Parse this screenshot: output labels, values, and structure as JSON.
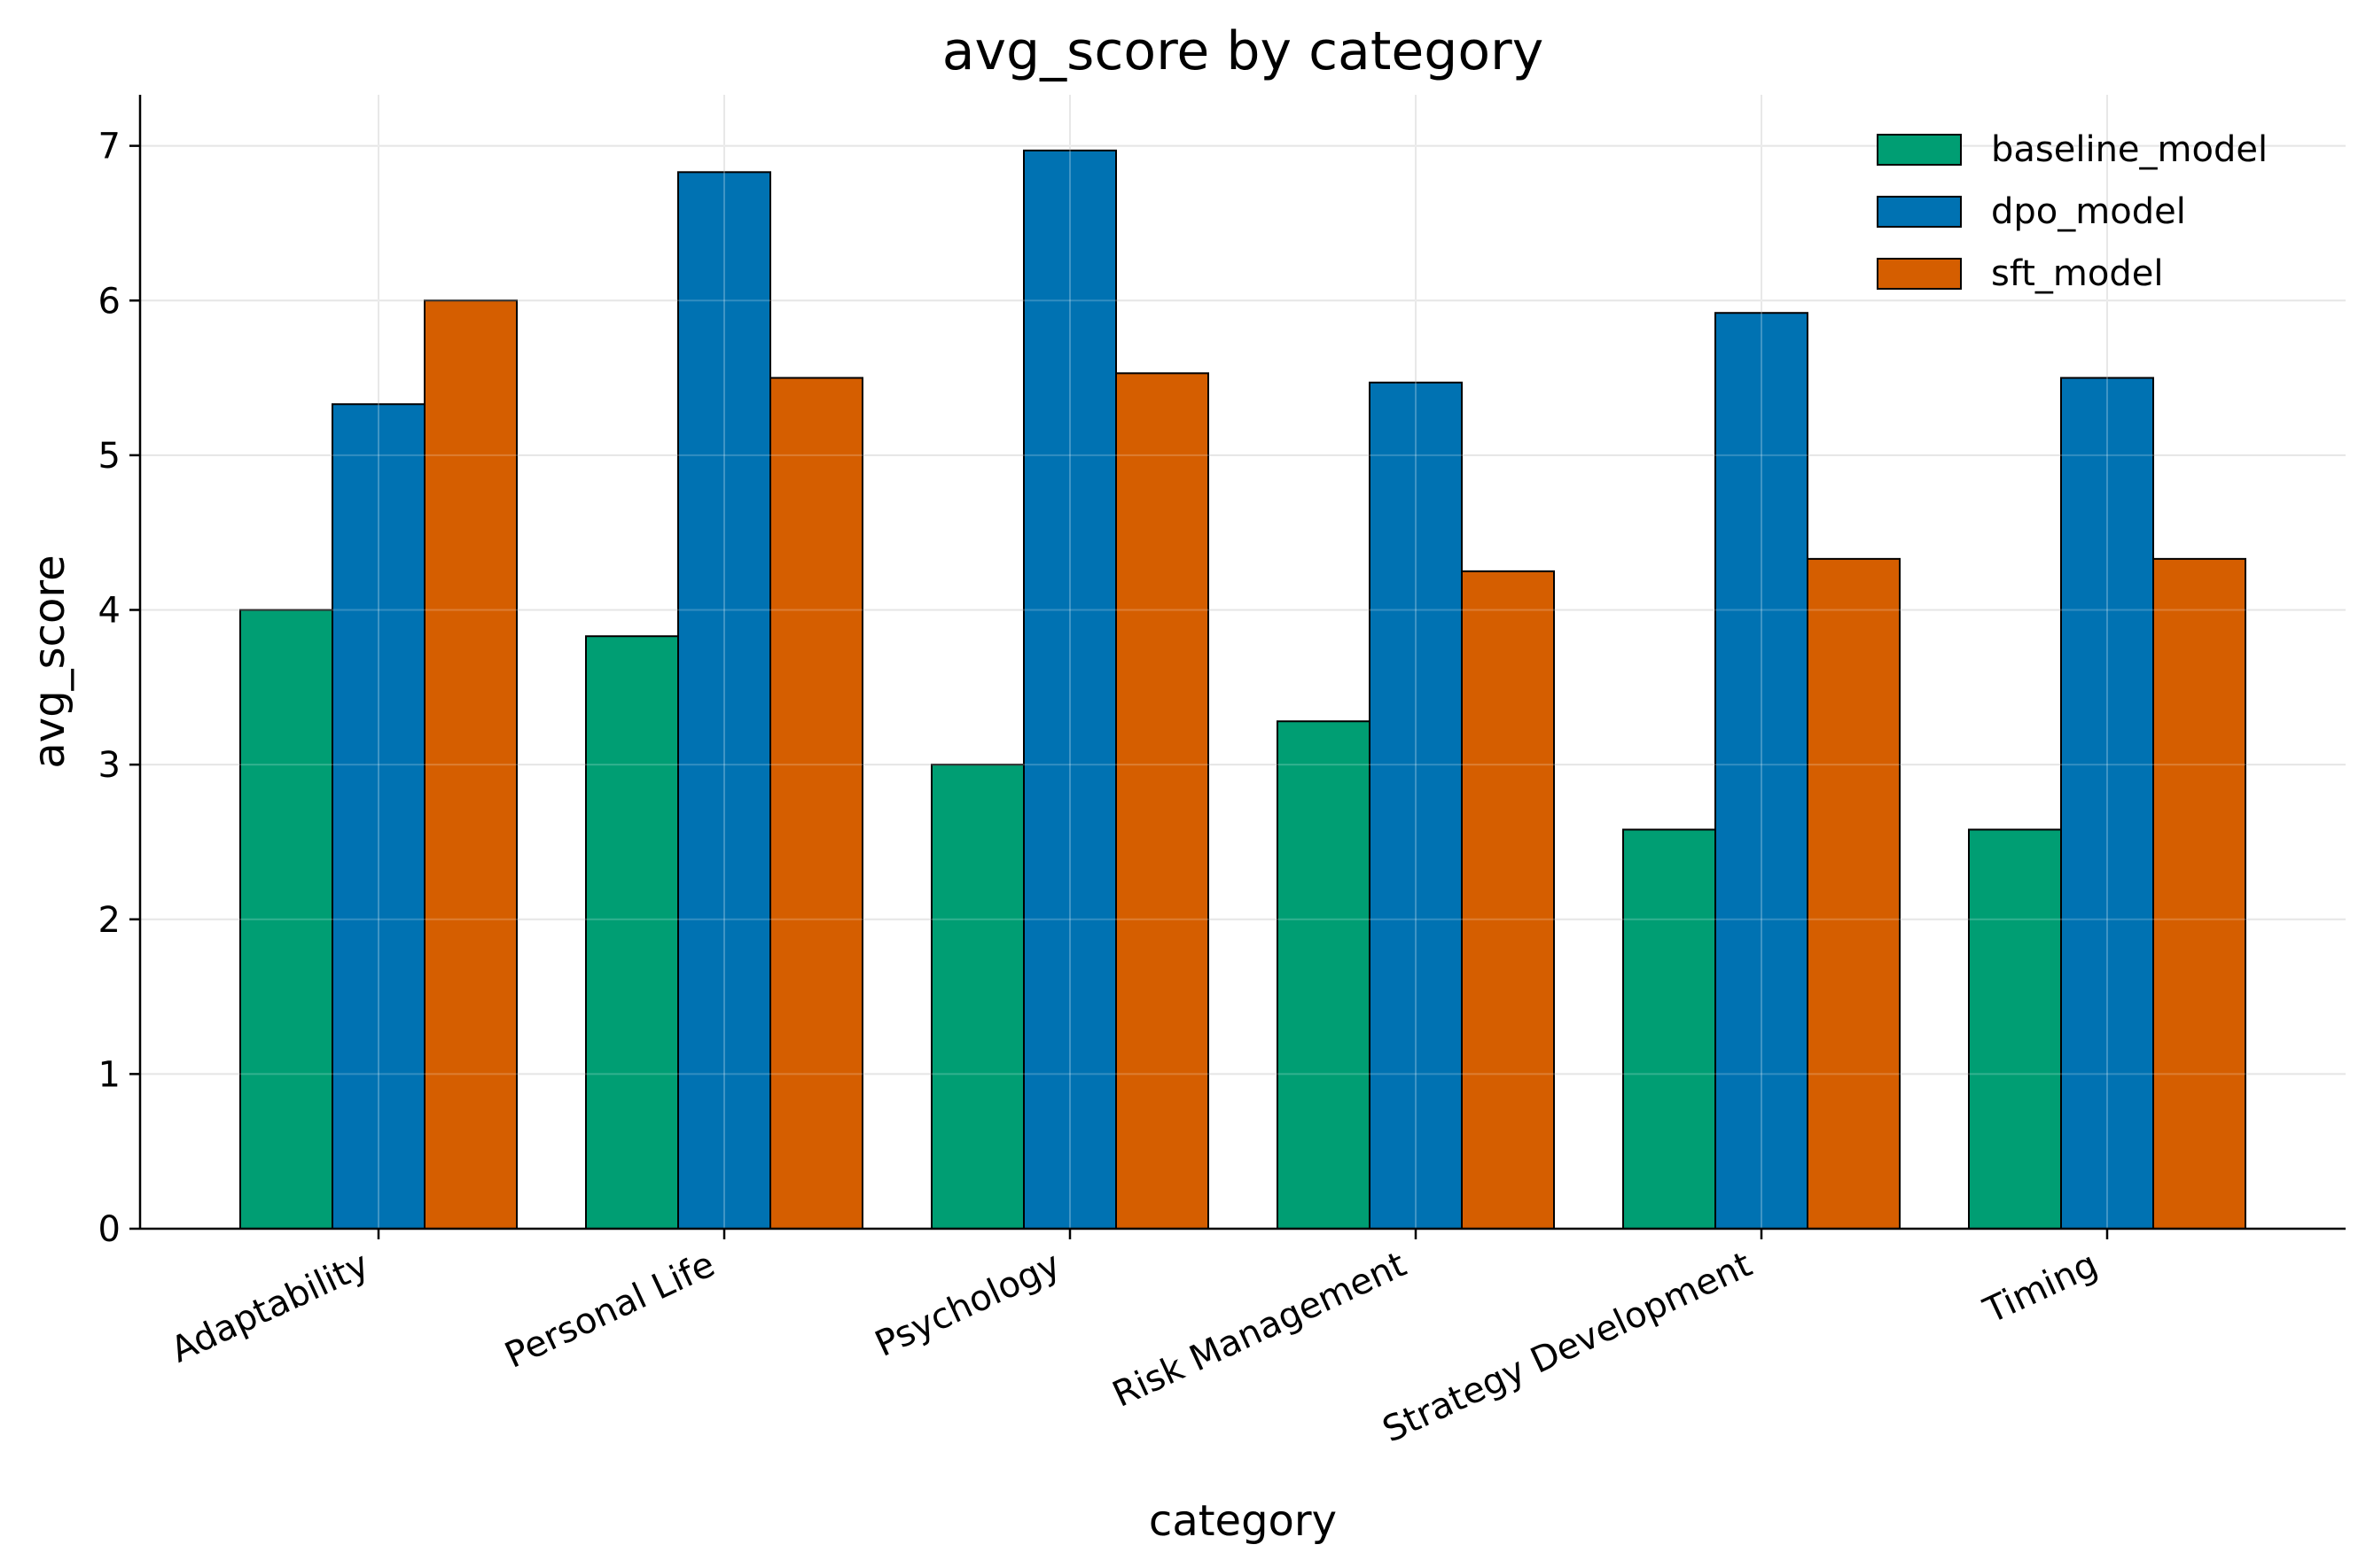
{
  "chart_data": {
    "type": "bar",
    "title": "avg_score by category",
    "xlabel": "category",
    "ylabel": "avg_score",
    "ylim": [
      0,
      7.33
    ],
    "yticks": [
      0,
      1,
      2,
      3,
      4,
      5,
      6,
      7
    ],
    "grid": true,
    "legend_position": "top-right",
    "categories": [
      "Adaptability",
      "Personal Life",
      "Psychology",
      "Risk Management",
      "Strategy Development",
      "Timing"
    ],
    "series": [
      {
        "name": "baseline_model",
        "color": "#009E73",
        "values": [
          4.0,
          3.83,
          3.0,
          3.28,
          2.58,
          2.58
        ]
      },
      {
        "name": "dpo_model",
        "color": "#0072B2",
        "values": [
          5.33,
          6.83,
          6.97,
          5.47,
          5.92,
          5.5
        ]
      },
      {
        "name": "sft_model",
        "color": "#D55E00",
        "values": [
          6.0,
          5.5,
          5.53,
          4.25,
          4.33,
          4.33
        ]
      }
    ]
  }
}
